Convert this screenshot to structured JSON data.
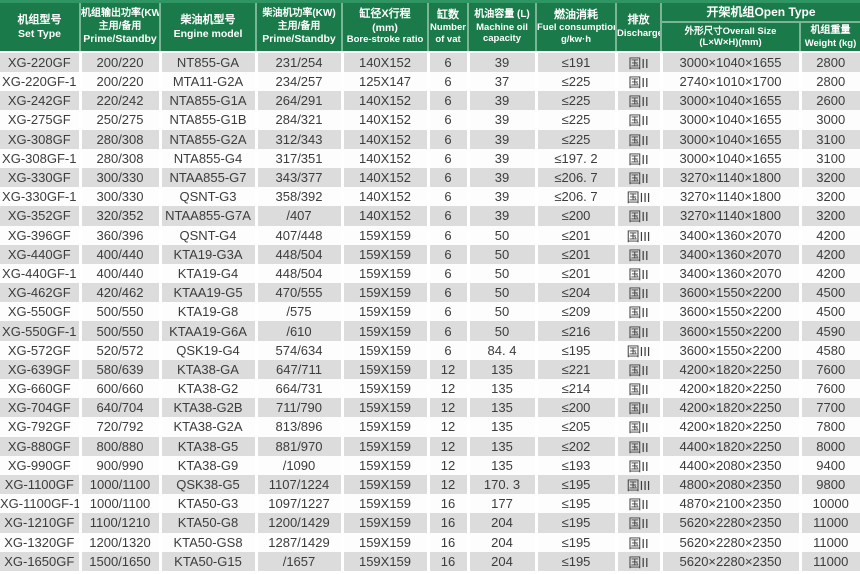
{
  "colors": {
    "header_bg": "#1a7a4a",
    "header_top_line": "#2f9663",
    "header_divider": "#7ab695",
    "row_alt": "#dcdcdc",
    "row_base": "#fdfdfd",
    "cell_text": "#3c3c3c",
    "header_text": "#ffffff"
  },
  "table": {
    "column_keys": [
      "set-type",
      "output-power",
      "engine-model",
      "engine-power",
      "bore-stroke",
      "cylinders",
      "oil-capacity",
      "fuel-consumption",
      "discharge",
      "overall-size",
      "weight"
    ],
    "headers": {
      "set_type": {
        "zh": "机组型号",
        "en": "Set Type"
      },
      "output_power": {
        "zh": "机组输出功率(KW)",
        "zh2": "主用/备用",
        "en": "Prime/Standby"
      },
      "engine_model": {
        "zh": "柴油机型号",
        "en": "Engine model"
      },
      "engine_power": {
        "zh": "柴油机功率(KW)",
        "zh2": "主用/备用",
        "en": "Prime/Standby"
      },
      "bore_stroke": {
        "zh": "缸径X行程",
        "unit": "(mm)",
        "en": "Bore-stroke ratio"
      },
      "cylinders": {
        "zh": "缸数",
        "en1": "Number",
        "en2": "of vat"
      },
      "oil_capacity": {
        "zh": "机油容量 (L)",
        "en1": "Machine oil",
        "en2": "capacity"
      },
      "fuel": {
        "zh": "燃油消耗",
        "en1": "Fuel consumption",
        "en2": "g/kw·h"
      },
      "discharge": {
        "zh": "排放",
        "en": "Discharge"
      },
      "open_type": {
        "label": "开架机组Open Type"
      },
      "overall_size": {
        "line1": "外形尺寸Overall Size",
        "line2": "(L×W×H)(mm)"
      },
      "weight": {
        "zh": "机组重量",
        "en": "Weight (kg)"
      }
    },
    "rows": [
      [
        "XG-220GF",
        "200/220",
        "NT855-GA",
        "231/254",
        "140X152",
        "6",
        "39",
        "≤191",
        "国II",
        "3000×1040×1655",
        "2800"
      ],
      [
        "XG-220GF-1",
        "200/220",
        "MTA11-G2A",
        "234/257",
        "125X147",
        "6",
        "37",
        "≤225",
        "国II",
        "2740×1010×1700",
        "2800"
      ],
      [
        "XG-242GF",
        "220/242",
        "NTA855-G1A",
        "264/291",
        "140X152",
        "6",
        "39",
        "≤225",
        "国II",
        "3000×1040×1655",
        "2600"
      ],
      [
        "XG-275GF",
        "250/275",
        "NTA855-G1B",
        "284/321",
        "140X152",
        "6",
        "39",
        "≤225",
        "国II",
        "3000×1040×1655",
        "3000"
      ],
      [
        "XG-308GF",
        "280/308",
        "NTA855-G2A",
        "312/343",
        "140X152",
        "6",
        "39",
        "≤225",
        "国II",
        "3000×1040×1655",
        "3100"
      ],
      [
        "XG-308GF-1",
        "280/308",
        "NTA855-G4",
        "317/351",
        "140X152",
        "6",
        "39",
        "≤197. 2",
        "国II",
        "3000×1040×1655",
        "3100"
      ],
      [
        "XG-330GF",
        "300/330",
        "NTAA855-G7",
        "343/377",
        "140X152",
        "6",
        "39",
        "≤206. 7",
        "国II",
        "3270×1140×1800",
        "3200"
      ],
      [
        "XG-330GF-1",
        "300/330",
        "QSNT-G3",
        "358/392",
        "140X152",
        "6",
        "39",
        "≤206. 7",
        "国III",
        "3270×1140×1800",
        "3200"
      ],
      [
        "XG-352GF",
        "320/352",
        "NTAA855-G7A",
        "/407",
        "140X152",
        "6",
        "39",
        "≤200",
        "国II",
        "3270×1140×1800",
        "3200"
      ],
      [
        "XG-396GF",
        "360/396",
        "QSNT-G4",
        "407/448",
        "159X159",
        "6",
        "50",
        "≤201",
        "国III",
        "3400×1360×2070",
        "4200"
      ],
      [
        "XG-440GF",
        "400/440",
        "KTA19-G3A",
        "448/504",
        "159X159",
        "6",
        "50",
        "≤201",
        "国II",
        "3400×1360×2070",
        "4200"
      ],
      [
        "XG-440GF-1",
        "400/440",
        "KTA19-G4",
        "448/504",
        "159X159",
        "6",
        "50",
        "≤201",
        "国II",
        "3400×1360×2070",
        "4200"
      ],
      [
        "XG-462GF",
        "420/462",
        "KTAA19-G5",
        "470/555",
        "159X159",
        "6",
        "50",
        "≤204",
        "国II",
        "3600×1550×2200",
        "4500"
      ],
      [
        "XG-550GF",
        "500/550",
        "KTA19-G8",
        "/575",
        "159X159",
        "6",
        "50",
        "≤209",
        "国II",
        "3600×1550×2200",
        "4500"
      ],
      [
        "XG-550GF-1",
        "500/550",
        "KTAA19-G6A",
        "/610",
        "159X159",
        "6",
        "50",
        "≤216",
        "国II",
        "3600×1550×2200",
        "4590"
      ],
      [
        "XG-572GF",
        "520/572",
        "QSK19-G4",
        "574/634",
        "159X159",
        "6",
        "84. 4",
        "≤195",
        "国III",
        "3600×1550×2200",
        "4580"
      ],
      [
        "XG-639GF",
        "580/639",
        "KTA38-GA",
        "647/711",
        "159X159",
        "12",
        "135",
        "≤221",
        "国II",
        "4200×1820×2250",
        "7600"
      ],
      [
        "XG-660GF",
        "600/660",
        "KTA38-G2",
        "664/731",
        "159X159",
        "12",
        "135",
        "≤214",
        "国II",
        "4200×1820×2250",
        "7600"
      ],
      [
        "XG-704GF",
        "640/704",
        "KTA38-G2B",
        "711/790",
        "159X159",
        "12",
        "135",
        "≤200",
        "国II",
        "4200×1820×2250",
        "7700"
      ],
      [
        "XG-792GF",
        "720/792",
        "KTA38-G2A",
        "813/896",
        "159X159",
        "12",
        "135",
        "≤205",
        "国II",
        "4200×1820×2250",
        "7800"
      ],
      [
        "XG-880GF",
        "800/880",
        "KTA38-G5",
        "881/970",
        "159X159",
        "12",
        "135",
        "≤202",
        "国II",
        "4400×1820×2250",
        "8000"
      ],
      [
        "XG-990GF",
        "900/990",
        "KTA38-G9",
        "/1090",
        "159X159",
        "12",
        "135",
        "≤193",
        "国II",
        "4400×2080×2350",
        "9400"
      ],
      [
        "XG-1100GF",
        "1000/1100",
        "QSK38-G5",
        "1107/1224",
        "159X159",
        "12",
        "170. 3",
        "≤195",
        "国III",
        "4800×2080×2350",
        "9800"
      ],
      [
        "XG-1100GF-1",
        "1000/1100",
        "KTA50-G3",
        "1097/1227",
        "159X159",
        "16",
        "177",
        "≤195",
        "国II",
        "4870×2100×2350",
        "10000"
      ],
      [
        "XG-1210GF",
        "1100/1210",
        "KTA50-G8",
        "1200/1429",
        "159X159",
        "16",
        "204",
        "≤195",
        "国II",
        "5620×2280×2350",
        "11000"
      ],
      [
        "XG-1320GF",
        "1200/1320",
        "KTA50-GS8",
        "1287/1429",
        "159X159",
        "16",
        "204",
        "≤195",
        "国II",
        "5620×2280×2350",
        "11000"
      ],
      [
        "XG-1650GF",
        "1500/1650",
        "KTA50-G15",
        "/1657",
        "159X159",
        "16",
        "204",
        "≤195",
        "国II",
        "5620×2280×2350",
        "11000"
      ]
    ]
  }
}
